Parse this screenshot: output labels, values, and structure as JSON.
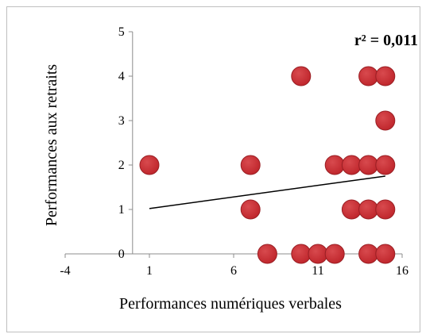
{
  "chart_data": {
    "type": "scatter",
    "title": "",
    "annotation": "r² = 0,011",
    "xlabel": "Performances numériques verbales",
    "ylabel": "Performances aux retraits",
    "xlim": [
      -4,
      16
    ],
    "ylim": [
      0,
      5
    ],
    "x_ticks": [
      "-4",
      "1",
      "6",
      "11",
      "16"
    ],
    "y_ticks": [
      "0",
      "1",
      "2",
      "3",
      "4",
      "5"
    ],
    "grid": false,
    "marker_color": "#c0272d",
    "trendline": {
      "x": [
        1,
        15
      ],
      "y": [
        1.02,
        1.75
      ]
    },
    "series": [
      {
        "points": [
          [
            1,
            2
          ],
          [
            7,
            2
          ],
          [
            7,
            1
          ],
          [
            8,
            0
          ],
          [
            10,
            4
          ],
          [
            10,
            0
          ],
          [
            11,
            0
          ],
          [
            12,
            0
          ],
          [
            12,
            2
          ],
          [
            13,
            2
          ],
          [
            13,
            1
          ],
          [
            14,
            4
          ],
          [
            14,
            2
          ],
          [
            14,
            1
          ],
          [
            14,
            0
          ],
          [
            15,
            4
          ],
          [
            15,
            3
          ],
          [
            15,
            2
          ],
          [
            15,
            1
          ],
          [
            15,
            0
          ]
        ]
      }
    ]
  }
}
